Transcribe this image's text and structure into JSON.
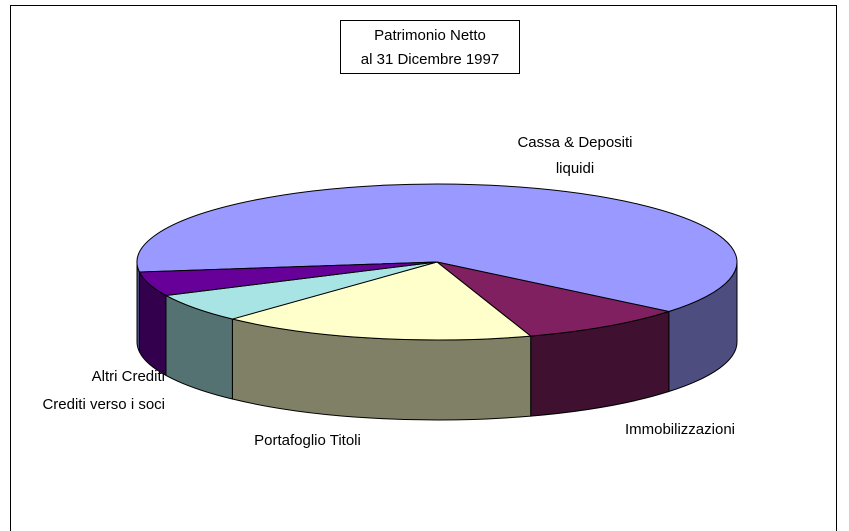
{
  "chart_data": {
    "type": "pie3d",
    "title": "Patrimonio Netto",
    "subtitle": "al 31 Dicembre 1997",
    "categories": [
      "Cassa & Depositi liquidi",
      "Immobilizzazioni",
      "Portafoglio Titoli",
      "Crediti verso i soci",
      "Altri Crediti"
    ],
    "values": [
      63,
      9,
      17,
      6,
      5
    ],
    "colors": [
      "#9999ff",
      "#802060",
      "#ffffcc",
      "#a8e4e4",
      "#660099"
    ]
  }
}
